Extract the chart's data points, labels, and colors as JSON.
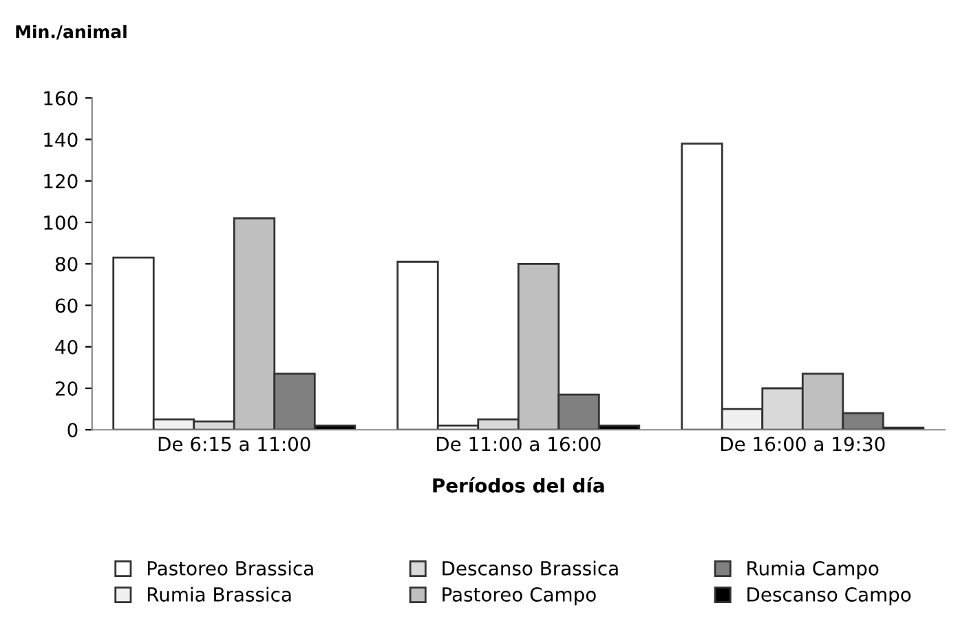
{
  "chart_data": {
    "type": "bar",
    "ylabel": "Min./animal",
    "xlabel": "Períodos del día",
    "categories": [
      "De 6:15 a 11:00",
      "De 11:00 a 16:00",
      "De 16:00 a 19:30"
    ],
    "series": [
      {
        "name": "Pastoreo Brassica",
        "color": "#ffffff",
        "values": [
          83,
          81,
          138
        ]
      },
      {
        "name": "Rumia Brassica",
        "color": "#f0f0f0",
        "values": [
          5,
          2,
          10
        ]
      },
      {
        "name": "Descanso Brassica",
        "color": "#d9d9d9",
        "values": [
          4,
          5,
          20
        ]
      },
      {
        "name": "Pastoreo Campo",
        "color": "#bfbfbf",
        "values": [
          102,
          80,
          27
        ]
      },
      {
        "name": "Rumia Campo",
        "color": "#808080",
        "values": [
          27,
          17,
          8
        ]
      },
      {
        "name": "Descanso Campo",
        "color": "#000000",
        "values": [
          2,
          2,
          1
        ]
      }
    ],
    "ylim": [
      0,
      160
    ],
    "yticks": [
      0,
      20,
      40,
      60,
      80,
      100,
      120,
      140,
      160
    ],
    "grid": false,
    "legend": "bottom"
  }
}
